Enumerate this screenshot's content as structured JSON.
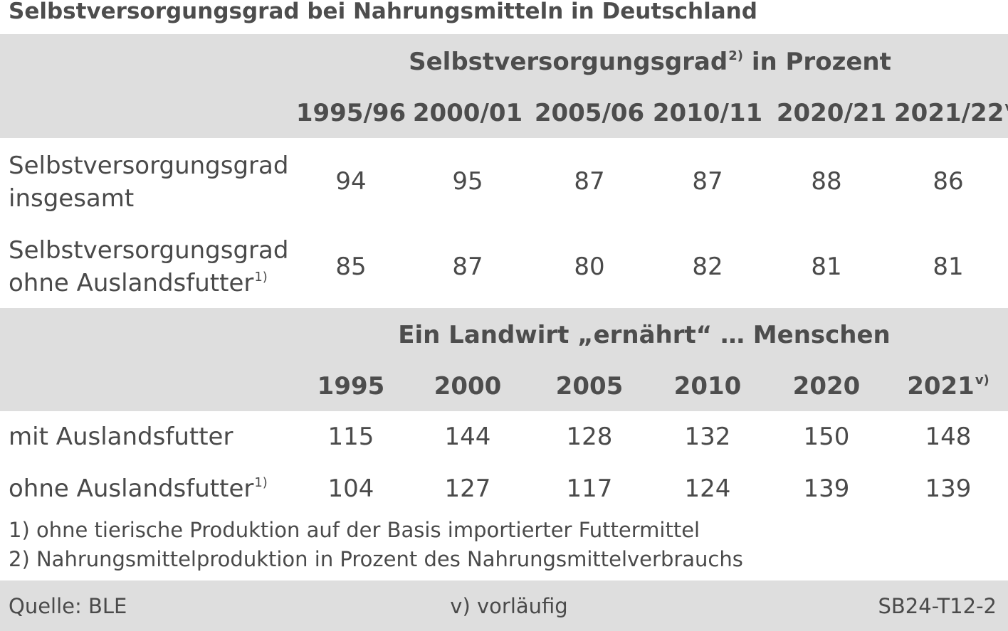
{
  "title": "Selbstversorgungsgrad bei Nahrungsmitteln in Deutschland",
  "section1": {
    "header": "Selbstversorgungsgrad",
    "header_sup": "2)",
    "header_suffix": " in Prozent",
    "years": [
      "1995/96",
      "2000/01",
      "2005/06",
      "2010/11",
      "2020/21",
      "2021/22"
    ],
    "last_year_sup": "v)",
    "rows": [
      {
        "label_line1": "Selbstversorgungsgrad",
        "label_line2": "insgesamt",
        "label_sup": "",
        "values": [
          "94",
          "95",
          "87",
          "87",
          "88",
          "86"
        ]
      },
      {
        "label_line1": "Selbstversorgungsgrad",
        "label_line2": "ohne Auslandsfutter",
        "label_sup": "1)",
        "values": [
          "85",
          "87",
          "80",
          "82",
          "81",
          "81"
        ]
      }
    ]
  },
  "section2": {
    "header": "Ein Landwirt „ernährt“ … Menschen",
    "years": [
      "1995",
      "2000",
      "2005",
      "2010",
      "2020",
      "2021"
    ],
    "last_year_sup": "v)",
    "rows": [
      {
        "label": "mit Auslandsfutter",
        "label_sup": "",
        "values": [
          "115",
          "144",
          "128",
          "132",
          "150",
          "148"
        ]
      },
      {
        "label": "ohne Auslandsfutter",
        "label_sup": "1)",
        "values": [
          "104",
          "127",
          "117",
          "124",
          "139",
          "139"
        ]
      }
    ]
  },
  "footnotes": [
    "1) ohne tierische Produktion auf der Basis importierter Futtermittel",
    "2) Nahrungsmittelproduktion in Prozent des Nahrungsmittelverbrauchs"
  ],
  "footer": {
    "source": "Quelle: BLE",
    "note": "v) vorläufig",
    "code": "SB24-T12-2"
  }
}
